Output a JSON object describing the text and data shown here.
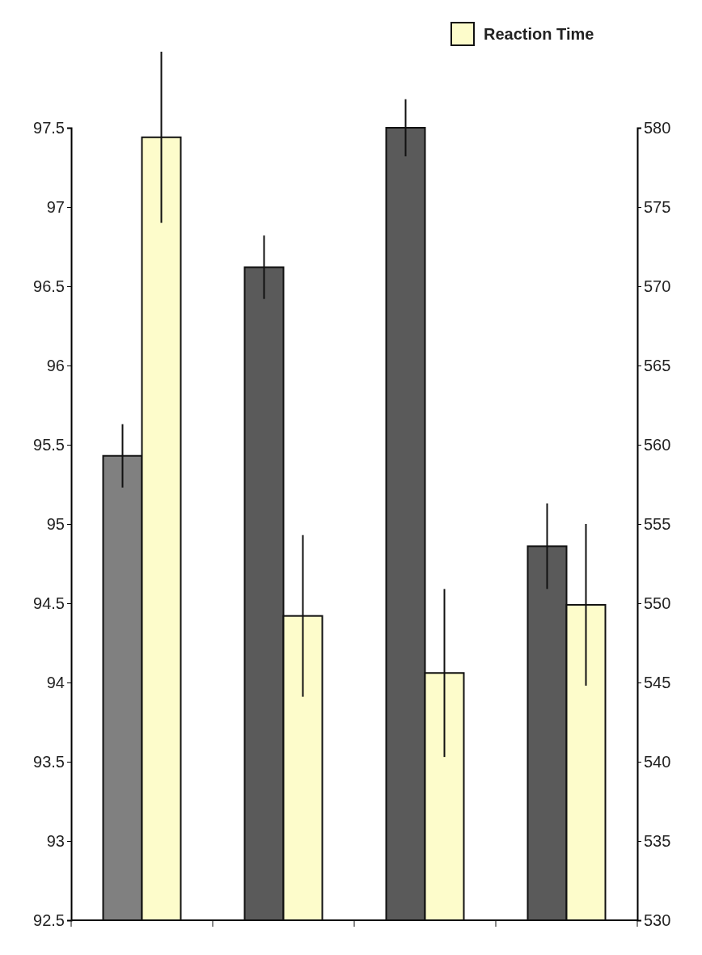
{
  "chart_data": {
    "type": "bar",
    "categories": [
      null,
      null,
      null,
      null
    ],
    "series": [
      {
        "colors": [
          "#808080",
          "#5a5a5a",
          "#5a5a5a",
          "#5a5a5a"
        ],
        "values": [
          95.43,
          96.62,
          97.5,
          94.86
        ],
        "errors": [
          0.2,
          0.2,
          0.18,
          0.27
        ]
      },
      {
        "name": "Reaction Time",
        "color": "#fdfccb",
        "axis": "y2",
        "values": [
          579.4,
          549.2,
          545.6,
          549.9
        ],
        "errors": [
          5.4,
          5.1,
          5.3,
          5.1
        ]
      }
    ],
    "ylim": [
      92.5,
      97.5
    ],
    "yticks": [
      92.5,
      93,
      93.5,
      94,
      94.5,
      95,
      95.5,
      96,
      96.5,
      97,
      97.5
    ],
    "y2lim": [
      530,
      580
    ],
    "y2ticks": [
      530,
      535,
      540,
      545,
      550,
      555,
      560,
      565,
      570,
      575,
      580
    ],
    "legend": "top right"
  }
}
